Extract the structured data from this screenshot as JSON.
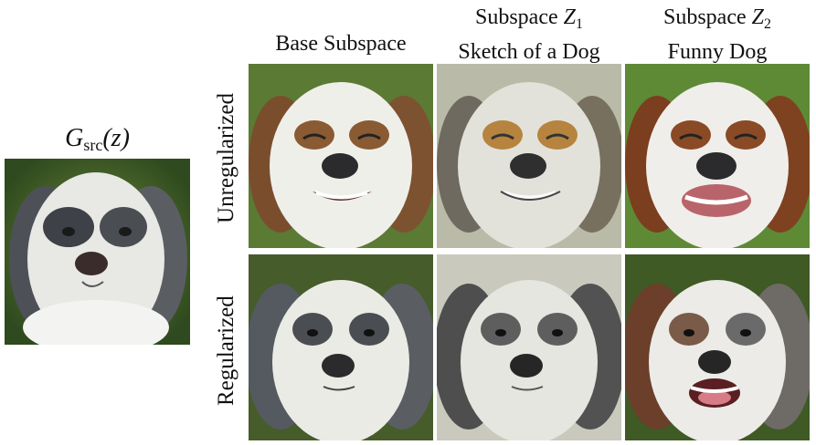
{
  "source": {
    "label_prefix": "G",
    "label_subscript": "src",
    "label_suffix": "(z)"
  },
  "columns": [
    {
      "line1": "Base Subspace"
    },
    {
      "line1_prefix": "Subspace ",
      "line1_math": "Z",
      "line1_sub": "1",
      "line2": "Sketch of a Dog"
    },
    {
      "line1_prefix": "Subspace ",
      "line1_math": "Z",
      "line1_sub": "2",
      "line2": "Funny Dog"
    }
  ],
  "rows": [
    {
      "label": "Unregularized"
    },
    {
      "label": "Regularized"
    }
  ],
  "colors": {
    "grass": "#4c6b2c",
    "fur_white": "#eeeeea",
    "fur_grey": "#555a60",
    "fur_brown": "#8a5a33",
    "sketch_bg": "#c9c9bd"
  }
}
